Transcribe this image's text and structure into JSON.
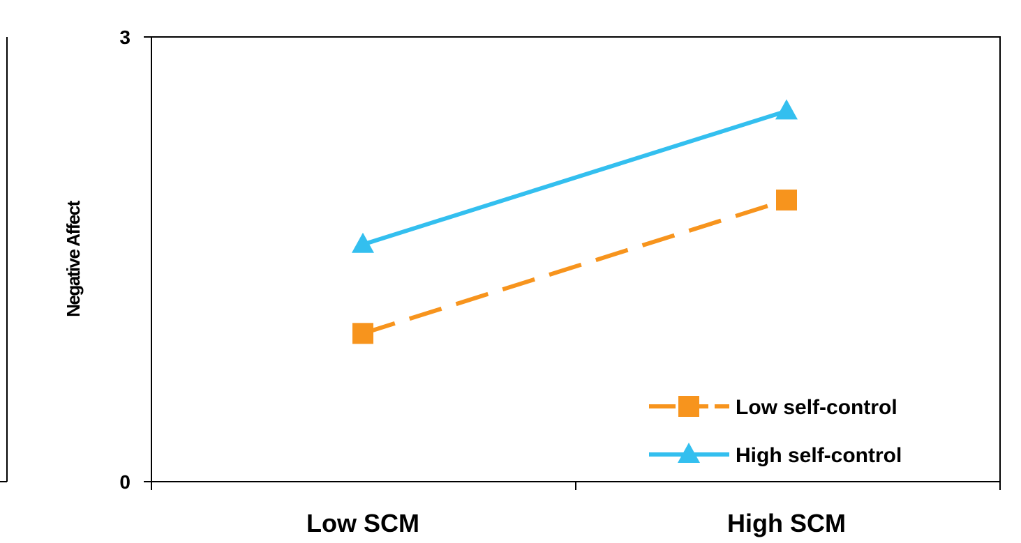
{
  "chart_data": {
    "type": "line",
    "title": "",
    "xlabel": "",
    "ylabel": "Negative Affect",
    "categories": [
      "Low SCM",
      "High SCM"
    ],
    "y_ticks": [
      "0",
      "3"
    ],
    "ylim": [
      0,
      3
    ],
    "grid": false,
    "legend_position": "bottom-right",
    "series": [
      {
        "name": "Low self-control",
        "values": [
          1.0,
          1.9
        ],
        "color": "#F7941D",
        "dash": "dashed",
        "marker": "square"
      },
      {
        "name": "High self-control",
        "values": [
          1.6,
          2.5
        ],
        "color": "#33BFEF",
        "dash": "solid",
        "marker": "triangle"
      }
    ]
  }
}
